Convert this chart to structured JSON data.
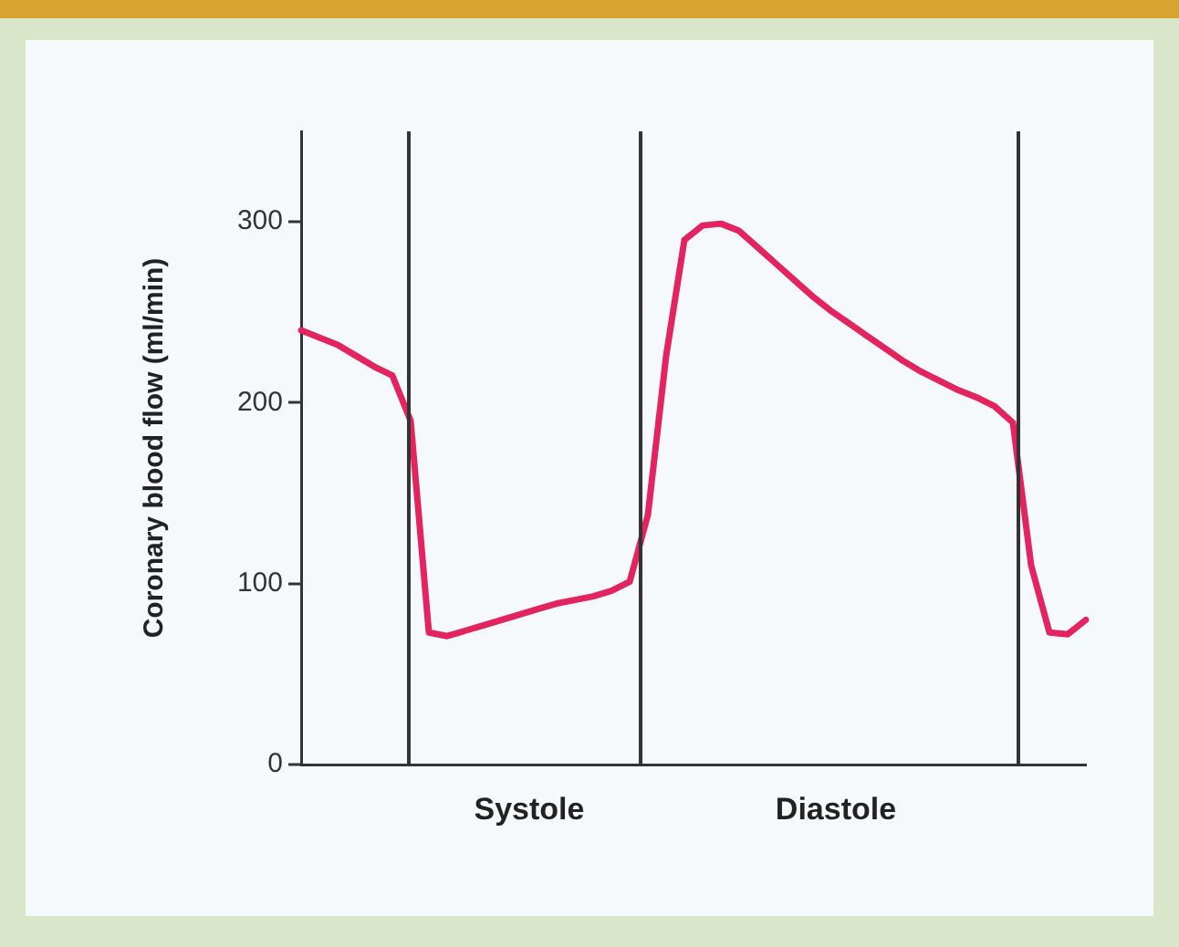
{
  "chart_data": {
    "type": "line",
    "ylabel": "Coronary blood flow (ml/min)",
    "tick_labels": "y",
    "grid": false,
    "legend": false,
    "marker": "none",
    "line_style": "solid",
    "categories": [
      null,
      null,
      null,
      null,
      null,
      null,
      null,
      null,
      null,
      null,
      null,
      null,
      null,
      null,
      null,
      null,
      null,
      null,
      null,
      null,
      null,
      null,
      null,
      null,
      null,
      null,
      null,
      null,
      null,
      null,
      null,
      null,
      null,
      null,
      null,
      null,
      null,
      null,
      null,
      null,
      null,
      null,
      null,
      null
    ],
    "series": [
      {
        "color": "#e3245e",
        "values": [
          240,
          236,
          232,
          226,
          220,
          215,
          190,
          73,
          71,
          74,
          77,
          80,
          83,
          86,
          89,
          91,
          93,
          96,
          101,
          138,
          226,
          290,
          298,
          299,
          295,
          286,
          277,
          268,
          259,
          251,
          244,
          237,
          230,
          223,
          217,
          212,
          207,
          203,
          198,
          189,
          110,
          73,
          72,
          80
        ]
      }
    ],
    "ylim": [
      0,
      350
    ],
    "yticks": [
      0,
      100,
      200,
      300
    ],
    "annotations": [
      "Systole",
      "Diastole"
    ]
  }
}
